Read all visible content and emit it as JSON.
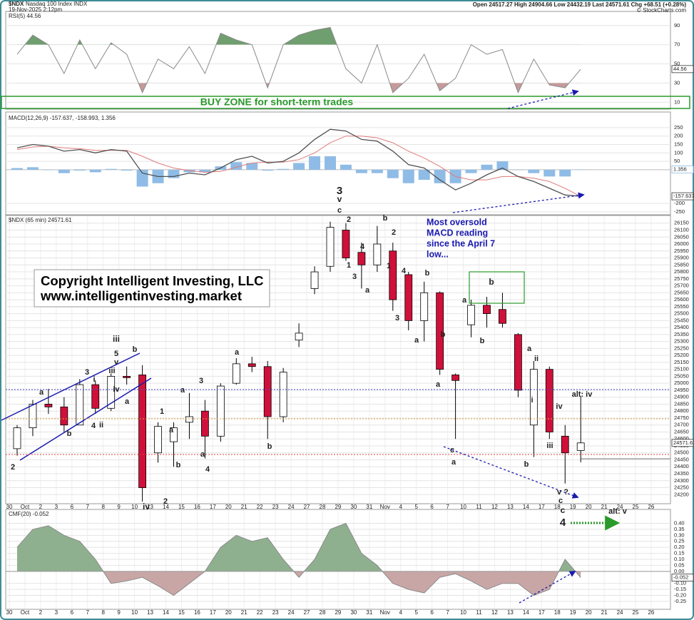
{
  "header": {
    "symbol": "$NDX",
    "name": "Nasdaq 100 Index INDX",
    "timestamp": "19-Nov-2025 2:12pm",
    "quote": "Open 24517.27  High 24904.66  Low 24432.19  Last 24571.61  Chg +68.51 (+0.28%)",
    "source": "© StockCharts.com"
  },
  "buy_zone": "BUY ZONE for short-term trades",
  "copyright": [
    "Copyright Intelligent Investing, LLC",
    "www.intelligentinvesting.market"
  ],
  "callout": [
    "Most oversold",
    "MACD reading",
    "since the April 7",
    "low..."
  ],
  "annotations": [
    {
      "text": "3",
      "color": "#2a8a2a"
    },
    {
      "text": "v",
      "color": "#555555"
    },
    {
      "text": "c",
      "color": "#1a1ab0"
    },
    {
      "text": "2",
      "color": "#d020c0"
    },
    {
      "text": "4",
      "color": "#d020c0"
    },
    {
      "text": "1",
      "color": "#d020c0"
    },
    {
      "text": "3",
      "color": "#d020c0"
    },
    {
      "text": "a",
      "color": "#1a1ab0"
    },
    {
      "text": "b",
      "color": "#1a1ab0"
    },
    {
      "text": "1",
      "color": "#d020c0"
    },
    {
      "text": "2",
      "color": "#d020c0"
    },
    {
      "text": "4",
      "color": "#d020c0"
    },
    {
      "text": "3",
      "color": "#d020c0"
    },
    {
      "text": "b",
      "color": "#e0901a"
    },
    {
      "text": "a",
      "color": "#e0901a"
    },
    {
      "text": "b",
      "color": "#1a1ab0"
    },
    {
      "text": "a",
      "color": "#1a1ab0"
    },
    {
      "text": "c",
      "color": "#e0901a"
    },
    {
      "text": "a",
      "color": "#555555"
    },
    {
      "text": "a",
      "color": "#e0901a"
    },
    {
      "text": "b",
      "color": "#555555"
    },
    {
      "text": "b",
      "color": "#e0901a"
    },
    {
      "text": "a",
      "color": "#e0901a"
    },
    {
      "text": "ii",
      "color": "#1a1ab0"
    },
    {
      "text": "i",
      "color": "#1a1ab0"
    },
    {
      "text": "iv",
      "color": "#1a1ab0"
    },
    {
      "text": "iii",
      "color": "#1a1ab0"
    },
    {
      "text": "b",
      "color": "#e0901a"
    },
    {
      "text": "v ?",
      "color": "#1a1ab0"
    },
    {
      "text": "c",
      "color": "#e0901a"
    },
    {
      "text": "c",
      "color": "#555555"
    },
    {
      "text": "4",
      "color": "#2a8a2a"
    },
    {
      "text": "alt: iv",
      "color": "#1a1ab0"
    },
    {
      "text": "alt: v",
      "color": "#1a1ab0"
    },
    {
      "text": "iii",
      "color": "#555555"
    },
    {
      "text": "5",
      "color": "#e0901a"
    },
    {
      "text": "v",
      "color": "#1a1ab0"
    },
    {
      "text": "iii",
      "color": "#1a1ab0"
    },
    {
      "text": "iv",
      "color": "#1a1ab0"
    },
    {
      "text": "b",
      "color": "#e0901a"
    },
    {
      "text": "a",
      "color": "#e0901a"
    },
    {
      "text": "3",
      "color": "#e0901a"
    },
    {
      "text": "i",
      "color": "#1a1ab0"
    },
    {
      "text": "4",
      "color": "#e0901a"
    },
    {
      "text": "ii",
      "color": "#1a1ab0"
    },
    {
      "text": "a",
      "color": "#1a1ab0"
    },
    {
      "text": "b",
      "color": "#1a1ab0"
    },
    {
      "text": "2",
      "color": "#e0901a"
    },
    {
      "text": "iv",
      "color": "#555555"
    },
    {
      "text": "1",
      "color": "#e0901a"
    },
    {
      "text": "a",
      "color": "#d020c0"
    },
    {
      "text": "2",
      "color": "#e0901a"
    },
    {
      "text": "b",
      "color": "#d020c0"
    },
    {
      "text": "a",
      "color": "#1a1ab0"
    },
    {
      "text": "3",
      "color": "#e0901a"
    },
    {
      "text": "a",
      "color": "#1a1ab0"
    },
    {
      "text": "4",
      "color": "#e0901a"
    },
    {
      "text": "a",
      "color": "#1a1ab0"
    },
    {
      "text": "b",
      "color": "#1a1ab0"
    }
  ],
  "chart_data": [
    {
      "type": "line",
      "label": "RSI(5) 44.56",
      "color": "#8a8a8a",
      "overbought": 70,
      "oversold": 30,
      "overbought_color": "#6f9e6f",
      "oversold_color": "#c49a9a",
      "last_label": "44.56",
      "values": [
        60,
        80,
        70,
        40,
        75,
        45,
        72,
        60,
        20,
        55,
        45,
        68,
        40,
        82,
        75,
        70,
        25,
        70,
        80,
        85,
        88,
        45,
        30,
        70,
        20,
        35,
        60,
        22,
        35,
        70,
        60,
        65,
        20,
        55,
        28,
        25,
        44.56
      ],
      "ylim": [
        5,
        104
      ],
      "yticks": [
        90,
        70,
        50,
        30,
        10
      ],
      "grid": true
    },
    {
      "type": "macd",
      "label": "MACD(12,26,9) -157.637, -158.993, 1.356",
      "macd_color": "#505050",
      "signal_color": "#e07a7a",
      "hist_color": "#8fbce6",
      "last_label": "-157.637",
      "hist_last_label": "1.356",
      "macd": [
        130,
        150,
        140,
        110,
        120,
        100,
        120,
        110,
        -20,
        -40,
        -40,
        -20,
        -30,
        10,
        60,
        80,
        40,
        50,
        100,
        180,
        240,
        230,
        180,
        170,
        110,
        30,
        10,
        -60,
        -120,
        -80,
        -30,
        10,
        -40,
        -70,
        -110,
        -150,
        -157.637
      ],
      "signal": [
        120,
        135,
        140,
        130,
        125,
        115,
        115,
        115,
        80,
        40,
        10,
        -5,
        -15,
        -10,
        15,
        40,
        45,
        45,
        60,
        100,
        160,
        200,
        200,
        190,
        160,
        110,
        70,
        20,
        -40,
        -60,
        -60,
        -40,
        -40,
        -50,
        -70,
        -110,
        -158.993
      ],
      "histogram": [
        10,
        15,
        0,
        -20,
        -5,
        -15,
        5,
        -5,
        -100,
        -80,
        -50,
        -15,
        -15,
        20,
        45,
        40,
        -5,
        5,
        40,
        80,
        80,
        30,
        -20,
        -20,
        -50,
        -80,
        -60,
        -80,
        -80,
        -20,
        30,
        50,
        0,
        -20,
        -40,
        -40,
        1.356
      ],
      "ylim": [
        -263,
        330
      ],
      "yticks": [
        250,
        200,
        150,
        100,
        50,
        -200,
        -250
      ],
      "grid": true
    },
    {
      "type": "candlestick",
      "label": "$NDX (65 min) 24571.61",
      "up_color": "#ffffff",
      "down_color": "#d0103a",
      "last_label": "24571.61",
      "categories": [
        "30",
        "Oct",
        "2",
        "3",
        "6",
        "7",
        "8",
        "9",
        "10",
        "13",
        "14",
        "15",
        "16",
        "17",
        "20",
        "21",
        "22",
        "23",
        "24",
        "27",
        "28",
        "29",
        "30",
        "31",
        "Nov",
        "4",
        "5",
        "6",
        "7",
        "10",
        "11",
        "12",
        "13",
        "14",
        "17",
        "18",
        "19",
        "20",
        "21",
        "24",
        "25",
        "26"
      ],
      "open": [
        24530,
        24680,
        24850,
        24830,
        24700,
        24990,
        24820,
        25050,
        25060,
        24500,
        24580,
        24720,
        24800,
        24620,
        25000,
        25140,
        25120,
        24760,
        25310,
        25680,
        25840,
        26100,
        25940,
        25850,
        25950,
        25780,
        25450,
        25650,
        25060,
        25420,
        25560,
        25530,
        25350,
        24700,
        25100,
        24620,
        24517.27,
        null,
        null,
        null,
        null,
        null
      ],
      "high": [
        24700,
        24880,
        24960,
        24900,
        25030,
        25020,
        25070,
        25120,
        25130,
        24720,
        24720,
        24930,
        24880,
        25000,
        25180,
        25190,
        25160,
        25110,
        25430,
        25840,
        26160,
        26150,
        26010,
        26130,
        26010,
        25800,
        25730,
        25660,
        25070,
        25600,
        25620,
        25650,
        25360,
        25160,
        25120,
        24700,
        24904.66,
        null,
        null,
        null,
        null,
        null
      ],
      "low": [
        24480,
        24620,
        24780,
        24650,
        24700,
        24780,
        24800,
        24990,
        24150,
        24430,
        24400,
        24600,
        24460,
        24580,
        24990,
        25080,
        24600,
        24720,
        25260,
        25640,
        25800,
        25880,
        25680,
        25800,
        25520,
        25380,
        25300,
        25060,
        24600,
        25330,
        25400,
        25400,
        24900,
        24470,
        24600,
        24280,
        24432.19,
        null,
        null,
        null,
        null,
        null
      ],
      "close": [
        24680,
        24850,
        24830,
        24700,
        24990,
        24820,
        25050,
        25040,
        24250,
        24690,
        24680,
        24760,
        24620,
        24980,
        25140,
        25120,
        24760,
        25080,
        25360,
        25800,
        26120,
        25900,
        25850,
        26000,
        25600,
        25450,
        25650,
        25100,
        25020,
        25560,
        25500,
        25430,
        24950,
        25100,
        24650,
        24500,
        24571.61,
        null,
        null,
        null,
        null,
        null
      ],
      "ylim": [
        24140,
        26200
      ],
      "yticks": [
        24200,
        24250,
        24300,
        24350,
        24400,
        24450,
        24500,
        24550,
        24600,
        24650,
        24700,
        24750,
        24800,
        24850,
        24900,
        24950,
        25000,
        25050,
        25100,
        25150,
        25200,
        25250,
        25300,
        25350,
        25400,
        25450,
        25500,
        25550,
        25600,
        25650,
        25700,
        25750,
        25800,
        25850,
        25900,
        25950,
        26000,
        26050,
        26100,
        26150
      ],
      "grid": true
    },
    {
      "type": "area",
      "label": "CMF(20) -0.052",
      "color": "#8a8a8a",
      "positive_color": "#8fb08f",
      "negative_color": "#c9a6a6",
      "last_label": "-0.052",
      "categories": [
        "30",
        "Oct",
        "2",
        "3",
        "6",
        "7",
        "8",
        "9",
        "10",
        "13",
        "14",
        "15",
        "16",
        "17",
        "20",
        "21",
        "22",
        "23",
        "24",
        "27",
        "28",
        "29",
        "30",
        "31",
        "Nov",
        "4",
        "5",
        "6",
        "7",
        "10",
        "11",
        "12",
        "13",
        "14",
        "17",
        "18",
        "19",
        "20",
        "21",
        "24",
        "25",
        "26"
      ],
      "values": [
        0.2,
        0.35,
        0.38,
        0.3,
        0.25,
        0.1,
        -0.1,
        -0.08,
        -0.05,
        -0.12,
        -0.2,
        -0.1,
        0.0,
        0.2,
        0.3,
        0.25,
        0.28,
        0.1,
        -0.05,
        0.1,
        0.35,
        0.4,
        0.15,
        0.05,
        -0.1,
        -0.15,
        -0.18,
        -0.05,
        -0.02,
        -0.08,
        -0.15,
        -0.1,
        -0.1,
        -0.2,
        -0.15,
        0.1,
        -0.052,
        null,
        null,
        null,
        null,
        null
      ],
      "ylim": [
        -0.31,
        0.51
      ],
      "yticks": [
        {
          "value": 0.4,
          "label": "0.40"
        },
        {
          "value": 0.35,
          "label": "0.35"
        },
        {
          "value": 0.3,
          "label": "0.30"
        },
        {
          "value": 0.25,
          "label": "0.25"
        },
        {
          "value": 0.2,
          "label": "0.20"
        },
        {
          "value": 0.15,
          "label": "0.15"
        },
        {
          "value": 0.1,
          "label": "0.10"
        },
        {
          "value": 0.05,
          "label": "0.05"
        },
        {
          "value": 0,
          "label": "0.00"
        },
        {
          "value": -0.1,
          "label": "-0.10"
        },
        {
          "value": -0.15,
          "label": "-0.15"
        },
        {
          "value": -0.2,
          "label": "-0.20"
        },
        {
          "value": -0.25,
          "label": "-0.25"
        }
      ],
      "grid": true
    }
  ]
}
